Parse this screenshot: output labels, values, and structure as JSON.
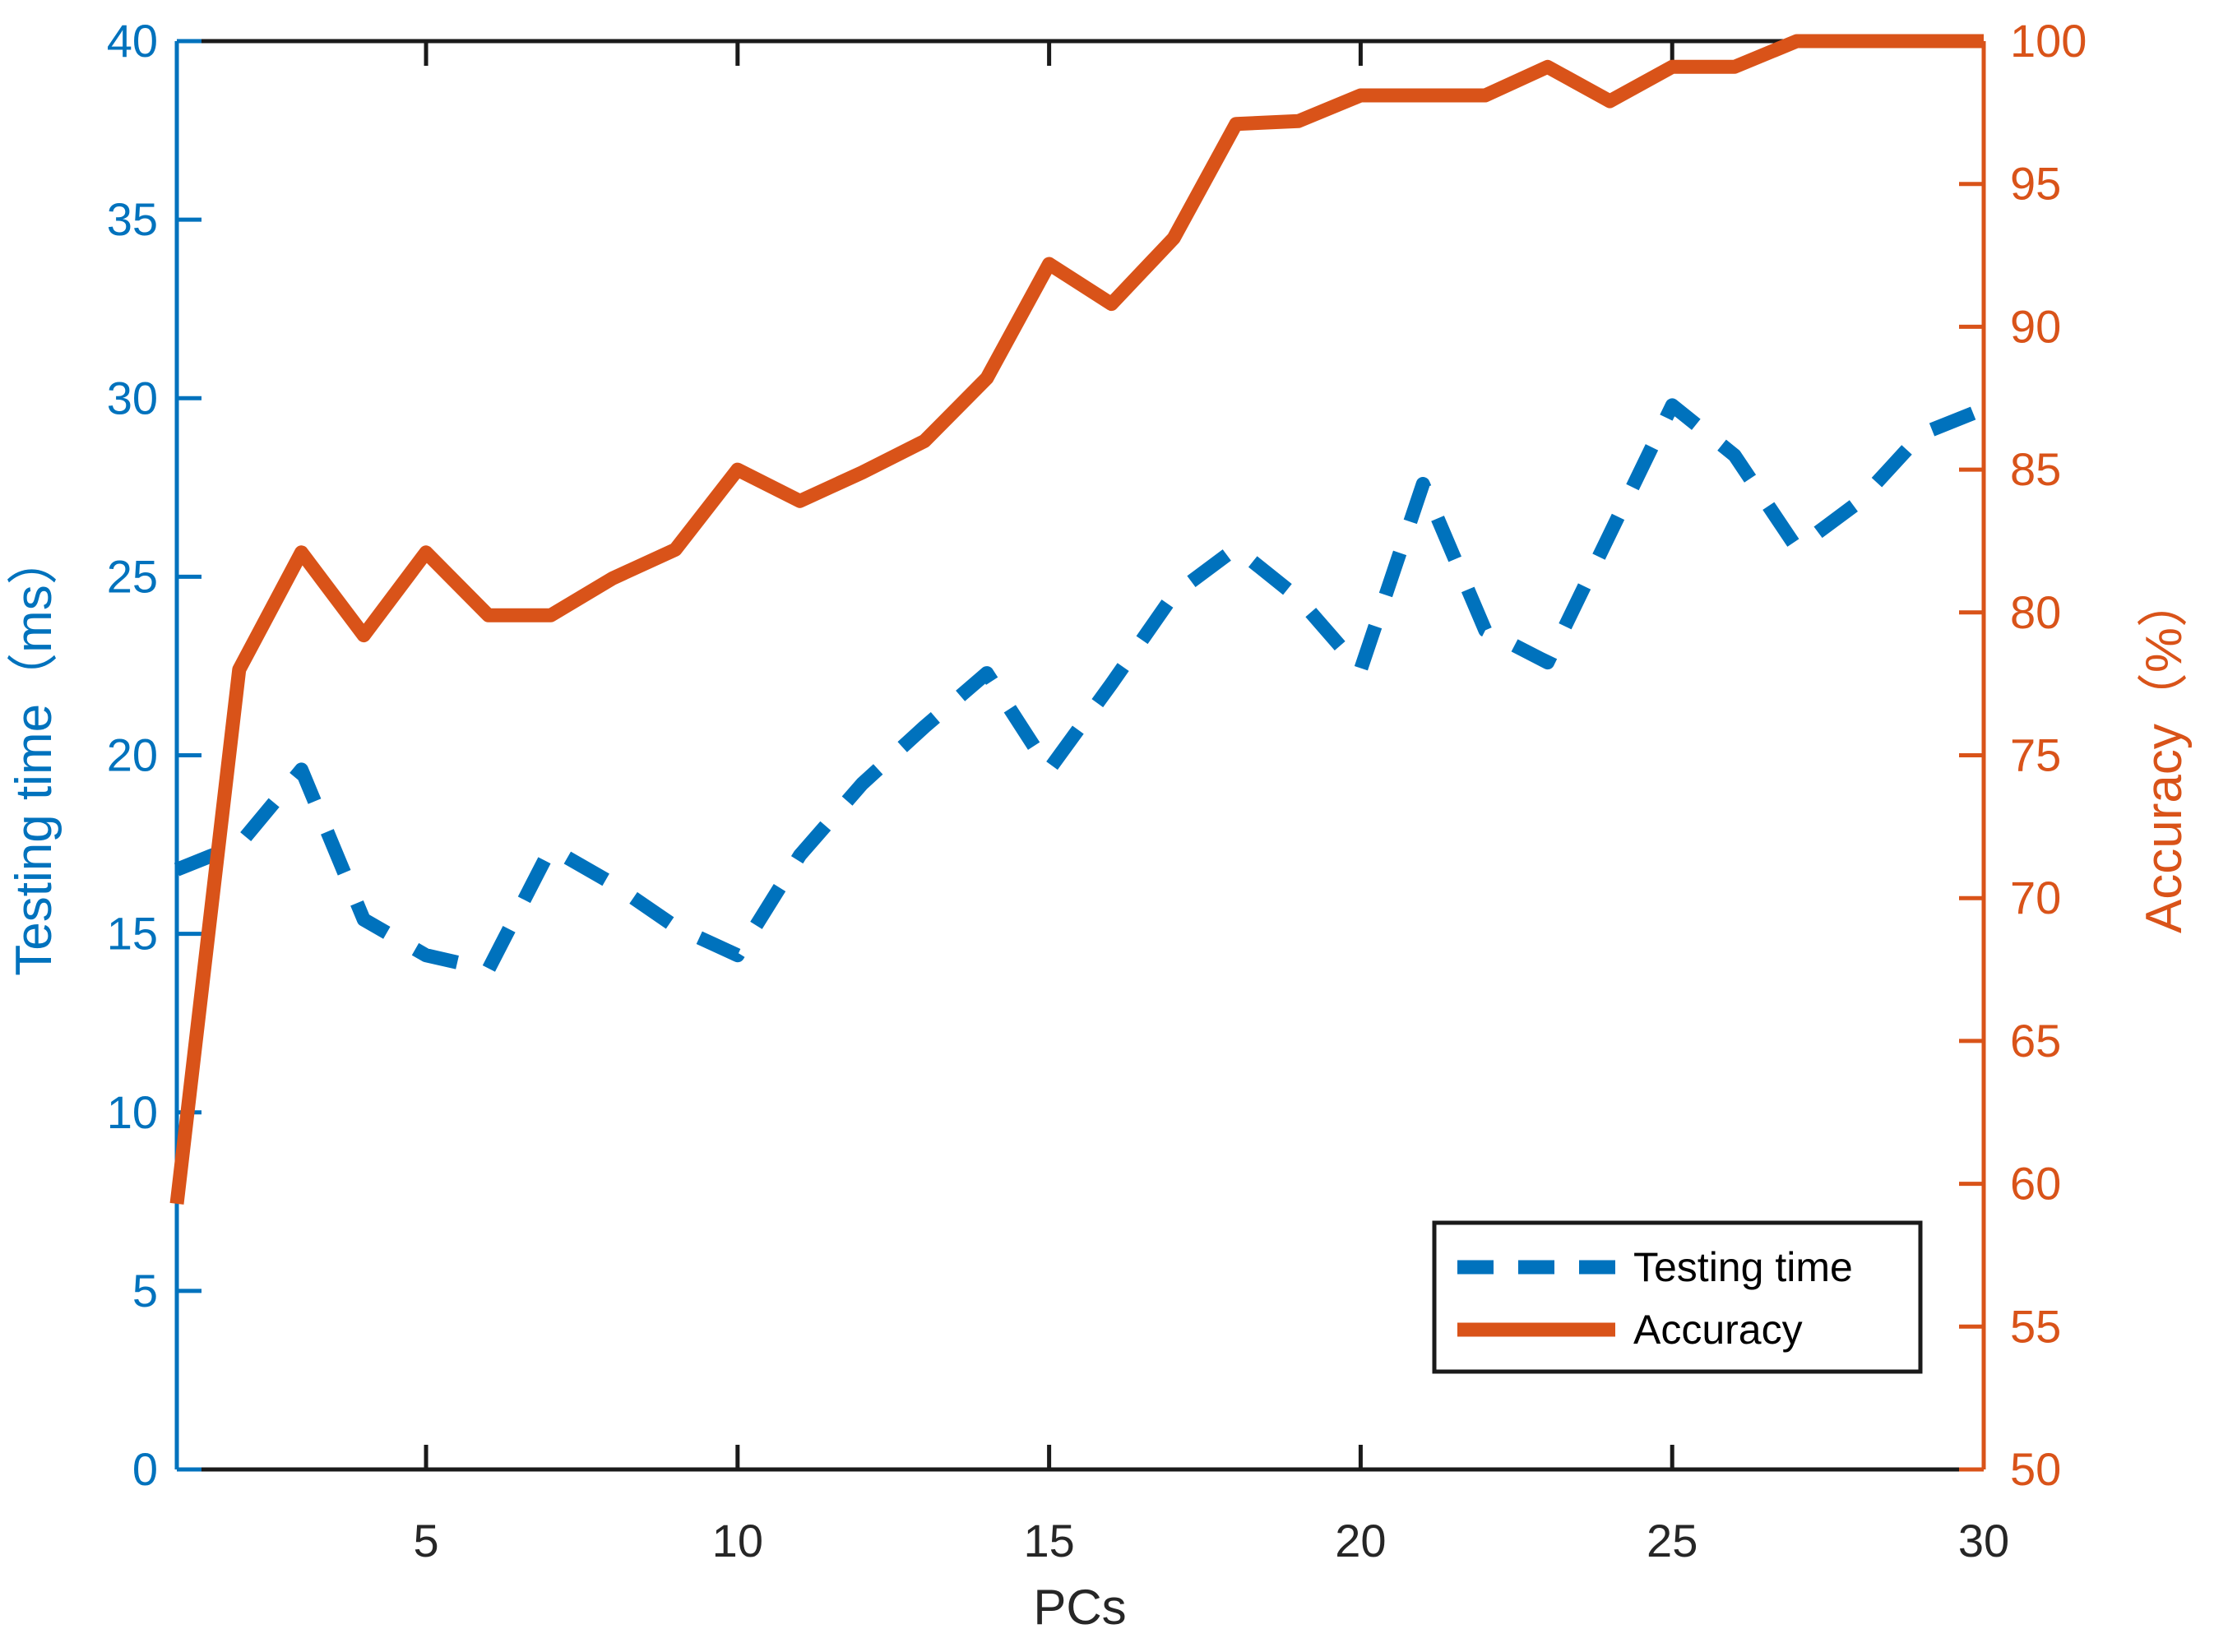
{
  "chart_data": {
    "type": "line",
    "title": "",
    "xlabel": "PCs",
    "x": [
      1,
      2,
      3,
      4,
      5,
      6,
      7,
      8,
      9,
      10,
      11,
      12,
      13,
      14,
      15,
      16,
      17,
      18,
      19,
      20,
      21,
      22,
      23,
      24,
      25,
      26,
      27,
      28,
      29,
      30
    ],
    "x_ticks": [
      5,
      10,
      15,
      20,
      25,
      30
    ],
    "x_range": [
      1,
      30
    ],
    "grid": false,
    "legend_position": "bottom-right",
    "left_axis": {
      "label": "Testing time（ms）",
      "min": 0,
      "max": 40,
      "ticks": [
        0,
        5,
        10,
        15,
        20,
        25,
        30,
        35,
        40
      ],
      "color": "#0072BD"
    },
    "right_axis": {
      "label": "Accuracy（%）",
      "min": 50,
      "max": 100,
      "ticks": [
        50,
        55,
        60,
        65,
        70,
        75,
        80,
        85,
        90,
        95,
        100
      ],
      "color": "#D95319"
    },
    "series": [
      {
        "name": "Testing time",
        "axis": "left",
        "style": "dashed",
        "color": "#0072BD",
        "values": [
          16.8,
          17.5,
          19.6,
          15.4,
          14.4,
          14.0,
          17.4,
          16.4,
          15.2,
          14.4,
          17.2,
          19.2,
          20.8,
          22.3,
          19.6,
          22.0,
          24.5,
          25.8,
          24.4,
          22.4,
          27.6,
          23.5,
          22.6,
          26.2,
          29.8,
          28.4,
          25.8,
          27.1,
          29.0,
          29.7
        ]
      },
      {
        "name": "Accuracy",
        "axis": "right",
        "style": "solid",
        "color": "#D95319",
        "values": [
          59.3,
          78.0,
          82.1,
          79.2,
          82.1,
          79.9,
          79.9,
          81.2,
          82.2,
          85.0,
          83.9,
          84.9,
          86.0,
          88.2,
          92.2,
          90.8,
          93.1,
          97.1,
          97.2,
          98.1,
          98.1,
          98.1,
          99.1,
          97.9,
          99.1,
          99.1,
          100.0,
          100.0,
          100.0,
          100.0
        ]
      }
    ]
  },
  "axes": {
    "xlabel": "PCs",
    "left_label": "Testing time（ms）",
    "right_label": "Accuracy（%）"
  },
  "legend": {
    "testing_time_label": "Testing time",
    "accuracy_label": "Accuracy"
  },
  "colors": {
    "blue": "#0072BD",
    "orange": "#D95319",
    "frame": "#1a1a1a",
    "tick_text": "#262626",
    "background": "#ffffff"
  }
}
